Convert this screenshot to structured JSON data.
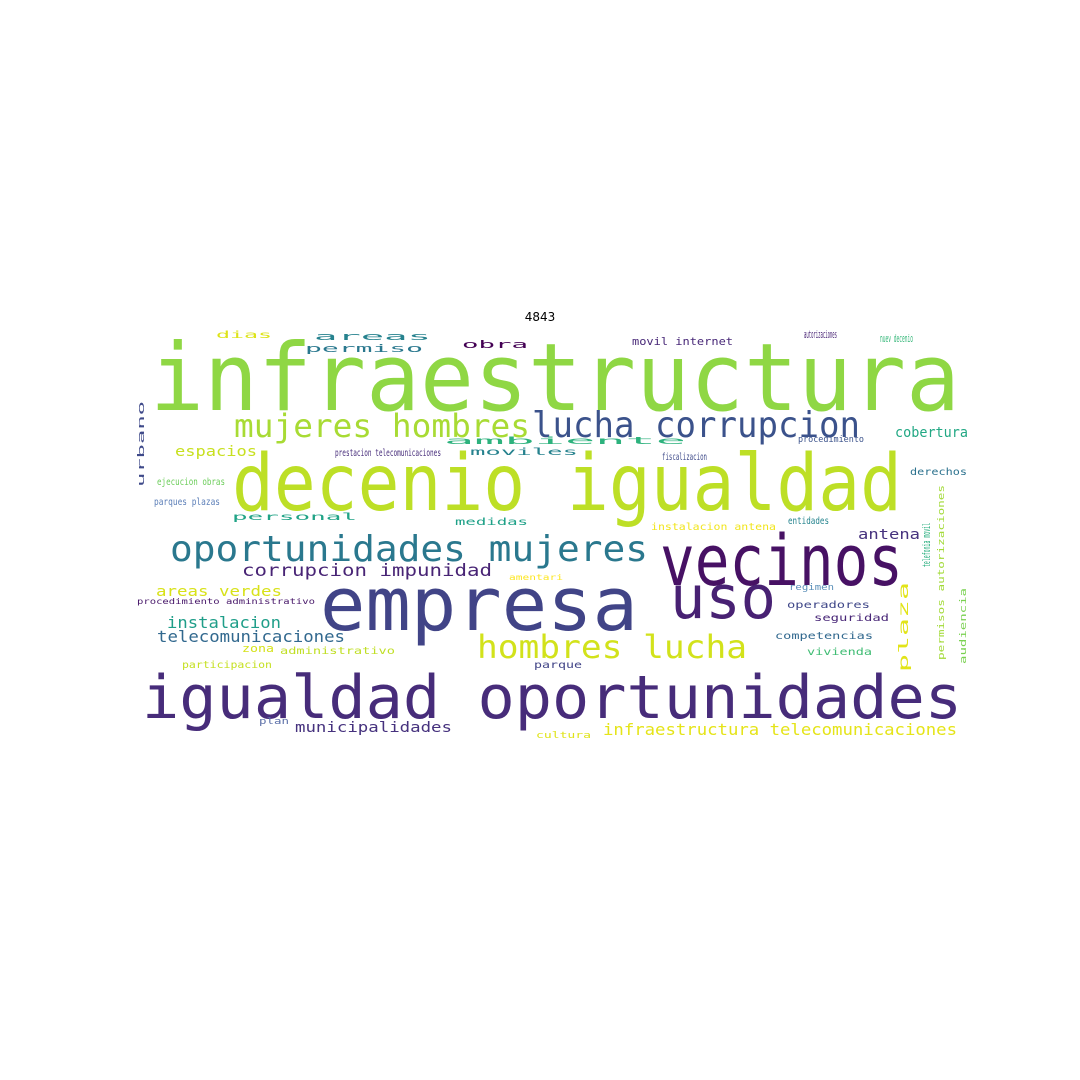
{
  "title": "4843",
  "words": [
    {
      "text": "infraestructura",
      "color": "#8fd744"
    },
    {
      "text": "decenio igualdad",
      "color": "#bddf26"
    },
    {
      "text": "empresa",
      "color": "#414487"
    },
    {
      "text": "vecinos",
      "color": "#471164"
    },
    {
      "text": "uso",
      "color": "#482173"
    },
    {
      "text": "igualdad oportunidades",
      "color": "#472c7a"
    },
    {
      "text": "oportunidades mujeres",
      "color": "#2a788e"
    },
    {
      "text": "lucha corrupcion",
      "color": "#3b528b"
    },
    {
      "text": "mujeres hombres",
      "color": "#a8db34"
    },
    {
      "text": "hombres lucha",
      "color": "#d2e21b"
    },
    {
      "text": "corrupcion impunidad",
      "color": "#482475"
    },
    {
      "text": "infraestructura telecomunicaciones",
      "color": "#e5e419"
    },
    {
      "text": "telecomunicaciones",
      "color": "#31688e"
    },
    {
      "text": "instalacion",
      "color": "#1f9e89"
    },
    {
      "text": "municipalidades",
      "color": "#46327e"
    },
    {
      "text": "areas verdes",
      "color": "#d8e219"
    },
    {
      "text": "espacios",
      "color": "#c8e020"
    },
    {
      "text": "antena",
      "color": "#46327e"
    },
    {
      "text": "cobertura",
      "color": "#22a884"
    },
    {
      "text": "areas",
      "color": "#26828e"
    },
    {
      "text": "permiso",
      "color": "#2a788e"
    },
    {
      "text": "movil internet",
      "color": "#482878"
    },
    {
      "text": "autorizaciones",
      "color": "#482475"
    },
    {
      "text": "nuev decenio",
      "color": "#35b779"
    },
    {
      "text": "obra",
      "color": "#440154"
    },
    {
      "text": "dias",
      "color": "#dde318"
    },
    {
      "text": "ambiente",
      "color": "#2db27d"
    },
    {
      "text": "moviles",
      "color": "#26828e"
    },
    {
      "text": "prestacion telecomunicaciones",
      "color": "#472d7b"
    },
    {
      "text": "fiscalizacion",
      "color": "#3e4a89"
    },
    {
      "text": "procedimiento",
      "color": "#3b528b"
    },
    {
      "text": "urbano",
      "color": "#3e4989"
    },
    {
      "text": "ejecucion obras",
      "color": "#6ccd5a"
    },
    {
      "text": "parques plazas",
      "color": "#5c7fb8"
    },
    {
      "text": "derechos",
      "color": "#2c728e"
    },
    {
      "text": "personal",
      "color": "#20a386"
    },
    {
      "text": "medidas",
      "color": "#1fa188"
    },
    {
      "text": "instalacion antena",
      "color": "#f1e51d"
    },
    {
      "text": "entidades",
      "color": "#25848e"
    },
    {
      "text": "telefonia movil",
      "color": "#29af7f"
    },
    {
      "text": "plaza",
      "color": "#e2e418"
    },
    {
      "text": "amentari",
      "color": "#fde725"
    },
    {
      "text": "regimen",
      "color": "#5a8fb8"
    },
    {
      "text": "procedimiento administrativo",
      "color": "#48186a"
    },
    {
      "text": "operadores",
      "color": "#3f4788"
    },
    {
      "text": "seguridad",
      "color": "#482677"
    },
    {
      "text": "permisos autorizaciones",
      "color": "#a2da37"
    },
    {
      "text": "audiencia",
      "color": "#7ad151"
    },
    {
      "text": "zona",
      "color": "#d5e21a"
    },
    {
      "text": "administrativo",
      "color": "#c0df25"
    },
    {
      "text": "competencias",
      "color": "#31688e"
    },
    {
      "text": "vivienda",
      "color": "#3fbc73"
    },
    {
      "text": "participacion",
      "color": "#c5e021"
    },
    {
      "text": "parque",
      "color": "#414487"
    },
    {
      "text": "plan",
      "color": "#5b6fa8"
    },
    {
      "text": "cultura",
      "color": "#dfe318"
    }
  ]
}
